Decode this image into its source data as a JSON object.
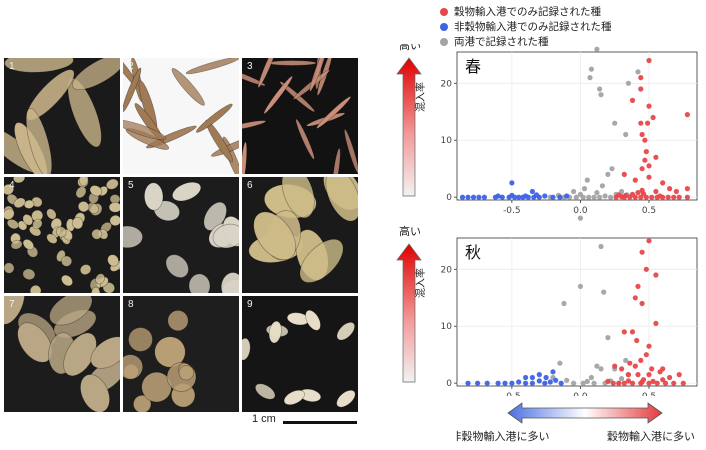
{
  "photos": {
    "tiles": [
      {
        "label": "1",
        "bg": "#1a1a1a",
        "seed": "#c9b48a"
      },
      {
        "label": "2",
        "bg": "#f7f7f7",
        "seed": "#a07a55"
      },
      {
        "label": "3",
        "bg": "#121212",
        "seed": "#c98f7a"
      },
      {
        "label": "4",
        "bg": "#1a1a1a",
        "seed": "#cdbd92"
      },
      {
        "label": "5",
        "bg": "#1c1c1c",
        "seed": "#d9d4c6"
      },
      {
        "label": "6",
        "bg": "#1a1a1a",
        "seed": "#cdbb88"
      },
      {
        "label": "7",
        "bg": "#1c1c1c",
        "seed": "#b9a684"
      },
      {
        "label": "8",
        "bg": "#1e1e1e",
        "seed": "#b89e75"
      },
      {
        "label": "9",
        "bg": "#151515",
        "seed": "#e7ddc8"
      }
    ],
    "scale_label": "1 cm"
  },
  "legend": [
    {
      "label": "穀物輸入港でのみ記録された種",
      "color": "#e8474a"
    },
    {
      "label": "非穀物輸入港でのみ記録された種",
      "color": "#3d63e6"
    },
    {
      "label": "両港で記録された種",
      "color": "#a3a3a3"
    }
  ],
  "gradient_arrow": {
    "left_label": "非穀物輸入港に多い",
    "right_label": "穀物輸入港に多い",
    "left_color": "#4a6fe3",
    "right_color": "#e3393c"
  },
  "chart_data": [
    {
      "type": "scatter",
      "title": "春",
      "xlabel": "",
      "ylabel": "混入率",
      "ylabel_top": "高い",
      "xlim": [
        -0.9,
        0.85
      ],
      "ylim": [
        -0.5,
        25.5
      ],
      "xticks": [
        "-0.5",
        "0.0",
        "0.5"
      ],
      "yticks": [
        "0",
        "10",
        "20"
      ],
      "grid": true,
      "series": [
        {
          "color": "#e8474a",
          "points": [
            [
              0.5,
              24
            ],
            [
              0.44,
              21
            ],
            [
              0.44,
              19
            ],
            [
              0.38,
              17
            ],
            [
              0.5,
              16
            ],
            [
              0.49,
              13
            ],
            [
              0.53,
              14
            ],
            [
              0.44,
              13
            ],
            [
              0.78,
              14.5
            ],
            [
              0.45,
              11
            ],
            [
              0.47,
              10
            ],
            [
              0.48,
              8
            ],
            [
              0.55,
              7
            ],
            [
              0.47,
              6.5
            ],
            [
              0.5,
              5.5
            ],
            [
              0.45,
              5
            ],
            [
              0.32,
              4
            ],
            [
              0.4,
              3
            ],
            [
              0.5,
              3.5
            ],
            [
              0.6,
              2.5
            ],
            [
              0.78,
              1.5
            ],
            [
              0.7,
              1
            ],
            [
              0.65,
              1.5
            ],
            [
              0.55,
              1
            ],
            [
              0.45,
              1.2
            ],
            [
              0.42,
              0.8
            ],
            [
              0.38,
              0.5
            ],
            [
              0.33,
              0.3
            ],
            [
              0.28,
              0.4
            ],
            [
              0.32,
              0
            ],
            [
              0.36,
              0
            ],
            [
              0.4,
              0
            ],
            [
              0.44,
              0
            ],
            [
              0.48,
              0
            ],
            [
              0.52,
              0
            ],
            [
              0.56,
              0
            ],
            [
              0.6,
              0
            ],
            [
              0.64,
              0
            ],
            [
              0.68,
              0
            ],
            [
              0.72,
              0
            ],
            [
              0.78,
              0
            ],
            [
              0.3,
              0.1
            ],
            [
              0.46,
              0.6
            ],
            [
              0.58,
              0.2
            ],
            [
              0.26,
              0
            ]
          ]
        },
        {
          "color": "#3d63e6",
          "points": [
            [
              -0.86,
              0
            ],
            [
              -0.82,
              0
            ],
            [
              -0.78,
              0
            ],
            [
              -0.74,
              0
            ],
            [
              -0.7,
              0
            ],
            [
              -0.62,
              0
            ],
            [
              -0.57,
              0
            ],
            [
              -0.52,
              0
            ],
            [
              -0.48,
              0
            ],
            [
              -0.45,
              0
            ],
            [
              -0.42,
              0
            ],
            [
              -0.38,
              0
            ],
            [
              -0.34,
              0
            ],
            [
              -0.3,
              0
            ],
            [
              -0.26,
              0.2
            ],
            [
              -0.2,
              0
            ],
            [
              -0.6,
              0.2
            ],
            [
              -0.5,
              0.3
            ],
            [
              -0.4,
              0.2
            ],
            [
              -0.32,
              0.4
            ],
            [
              -0.35,
              1
            ],
            [
              -0.5,
              2.5
            ],
            [
              -0.15,
              0
            ],
            [
              -0.1,
              0.2
            ]
          ]
        },
        {
          "color": "#a3a3a3",
          "points": [
            [
              0.08,
              22.5
            ],
            [
              0.07,
              21
            ],
            [
              0.14,
              19
            ],
            [
              0.12,
              26
            ],
            [
              0.15,
              18
            ],
            [
              0.35,
              20
            ],
            [
              0.42,
              22
            ],
            [
              0.25,
              13
            ],
            [
              0.33,
              11
            ],
            [
              0.2,
              4
            ],
            [
              0.23,
              5
            ],
            [
              0.05,
              3
            ],
            [
              -0.05,
              1
            ],
            [
              0.0,
              0.5
            ],
            [
              0.02,
              0
            ],
            [
              -0.12,
              0
            ],
            [
              -0.08,
              0
            ],
            [
              -0.03,
              0
            ],
            [
              0.06,
              0
            ],
            [
              0.1,
              0
            ],
            [
              0.14,
              0
            ],
            [
              0.18,
              0.2
            ],
            [
              0.22,
              0
            ],
            [
              0.26,
              0.5
            ],
            [
              0.3,
              1
            ],
            [
              0.34,
              0.4
            ],
            [
              -0.16,
              0.3
            ],
            [
              -0.22,
              0
            ],
            [
              0.12,
              0.8
            ],
            [
              0.03,
              1.5
            ],
            [
              0.16,
              2
            ]
          ]
        }
      ]
    },
    {
      "type": "scatter",
      "title": "秋",
      "xlabel": "",
      "ylabel": "混入率",
      "ylabel_top": "高い",
      "xlim": [
        -0.9,
        0.85
      ],
      "ylim": [
        -0.5,
        25.5
      ],
      "xticks": [
        "-0.5",
        "0.0",
        "0.5"
      ],
      "yticks": [
        "0",
        "10",
        "20"
      ],
      "grid": true,
      "series": [
        {
          "color": "#e8474a",
          "points": [
            [
              0.5,
              25
            ],
            [
              0.45,
              23
            ],
            [
              0.48,
              20
            ],
            [
              0.55,
              19
            ],
            [
              0.42,
              17
            ],
            [
              0.4,
              15
            ],
            [
              0.45,
              14
            ],
            [
              0.55,
              10.5
            ],
            [
              0.38,
              9
            ],
            [
              0.41,
              7.5
            ],
            [
              0.32,
              9
            ],
            [
              0.5,
              6.5
            ],
            [
              0.48,
              5
            ],
            [
              0.44,
              4
            ],
            [
              0.36,
              3.5
            ],
            [
              0.4,
              3
            ],
            [
              0.25,
              3
            ],
            [
              0.52,
              2.5
            ],
            [
              0.6,
              2.5
            ],
            [
              0.3,
              2.5
            ],
            [
              0.35,
              1.5
            ],
            [
              0.42,
              1.5
            ],
            [
              0.5,
              1.5
            ],
            [
              0.58,
              2
            ],
            [
              0.65,
              1
            ],
            [
              0.72,
              1.5
            ],
            [
              0.75,
              0
            ],
            [
              0.68,
              0
            ],
            [
              0.62,
              0
            ],
            [
              0.56,
              0
            ],
            [
              0.5,
              0
            ],
            [
              0.44,
              0
            ],
            [
              0.38,
              0
            ],
            [
              0.32,
              0
            ],
            [
              0.28,
              0
            ],
            [
              0.24,
              0
            ],
            [
              0.2,
              0.3
            ],
            [
              0.35,
              0.4
            ],
            [
              0.46,
              0.6
            ],
            [
              0.6,
              0.6
            ],
            [
              0.53,
              0.3
            ],
            [
              0.45,
              0.2
            ]
          ]
        },
        {
          "color": "#3d63e6",
          "points": [
            [
              -0.82,
              0
            ],
            [
              -0.75,
              0
            ],
            [
              -0.68,
              0
            ],
            [
              -0.6,
              0
            ],
            [
              -0.55,
              0
            ],
            [
              -0.5,
              0
            ],
            [
              -0.45,
              0.2
            ],
            [
              -0.4,
              0
            ],
            [
              -0.35,
              0
            ],
            [
              -0.3,
              0.4
            ],
            [
              -0.26,
              0
            ],
            [
              -0.22,
              0.2
            ],
            [
              -0.35,
              1
            ],
            [
              -0.3,
              1.5
            ],
            [
              -0.4,
              1
            ],
            [
              -0.25,
              1
            ],
            [
              -0.2,
              2
            ],
            [
              -0.18,
              0.5
            ],
            [
              -0.14,
              0
            ]
          ]
        },
        {
          "color": "#a3a3a3",
          "points": [
            [
              0.0,
              29
            ],
            [
              0.15,
              24
            ],
            [
              0.0,
              17
            ],
            [
              0.17,
              16
            ],
            [
              -0.12,
              14
            ],
            [
              0.2,
              8
            ],
            [
              0.33,
              4
            ],
            [
              -0.15,
              3.5
            ],
            [
              0.12,
              3
            ],
            [
              0.15,
              2.5
            ],
            [
              0.25,
              2.5
            ],
            [
              0.08,
              1
            ],
            [
              0.05,
              0.3
            ],
            [
              -0.05,
              0
            ],
            [
              0.02,
              0
            ],
            [
              0.1,
              0
            ],
            [
              0.18,
              0
            ],
            [
              0.22,
              0.4
            ],
            [
              0.3,
              0.8
            ],
            [
              0.35,
              1.5
            ],
            [
              -0.2,
              1
            ],
            [
              -0.1,
              0.5
            ],
            [
              0.28,
              0
            ]
          ]
        }
      ]
    }
  ]
}
